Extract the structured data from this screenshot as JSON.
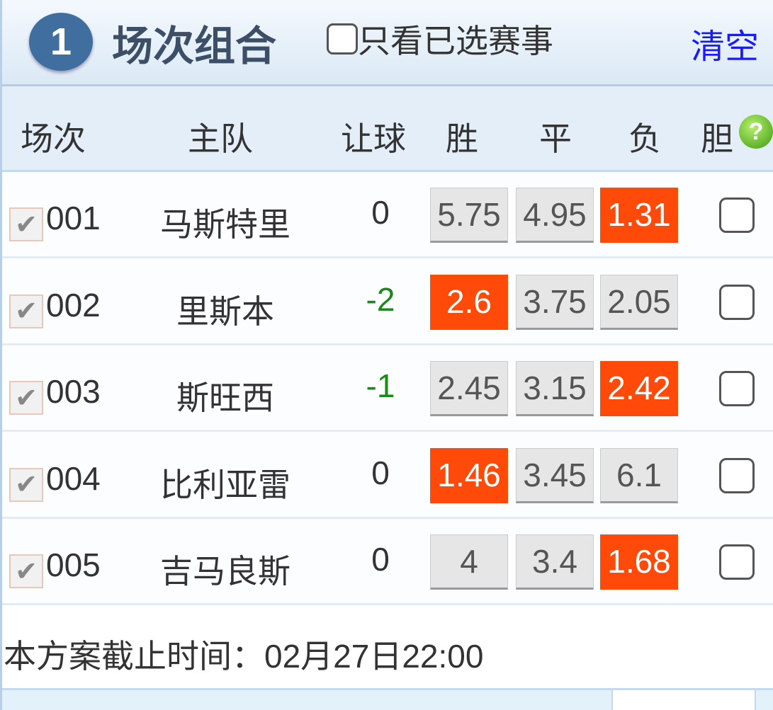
{
  "header": {
    "step_number": "1",
    "title": "场次组合",
    "only_selected_label": "只看已选赛事",
    "only_selected_checked": false,
    "clear_label": "清空"
  },
  "columns": {
    "match": "场次",
    "home": "主队",
    "handicap": "让球",
    "win": "胜",
    "draw": "平",
    "lose": "负",
    "banker": "胆",
    "help_icon": "?"
  },
  "rows": [
    {
      "num": "001",
      "team": "马斯特里",
      "handicap": "0",
      "win": "5.75",
      "draw": "4.95",
      "lose": "1.31",
      "selected": "lose"
    },
    {
      "num": "002",
      "team": "里斯本",
      "handicap": "-2",
      "win": "2.6",
      "draw": "3.75",
      "lose": "2.05",
      "selected": "win"
    },
    {
      "num": "003",
      "team": "斯旺西",
      "handicap": "-1",
      "win": "2.45",
      "draw": "3.15",
      "lose": "2.42",
      "selected": "lose"
    },
    {
      "num": "004",
      "team": "比利亚雷",
      "handicap": "0",
      "win": "1.46",
      "draw": "3.45",
      "lose": "6.1",
      "selected": "win"
    },
    {
      "num": "005",
      "team": "吉马良斯",
      "handicap": "0",
      "win": "4",
      "draw": "3.4",
      "lose": "1.68",
      "selected": "lose"
    }
  ],
  "footer": {
    "deadline": "本方案截止时间：02月27日22:00"
  },
  "colors": {
    "selected_odds": "#ff4a0a",
    "negative_handicap": "#1a8a1a",
    "clear_link": "#1a1aff",
    "step_badge": "#3f6e9f"
  }
}
